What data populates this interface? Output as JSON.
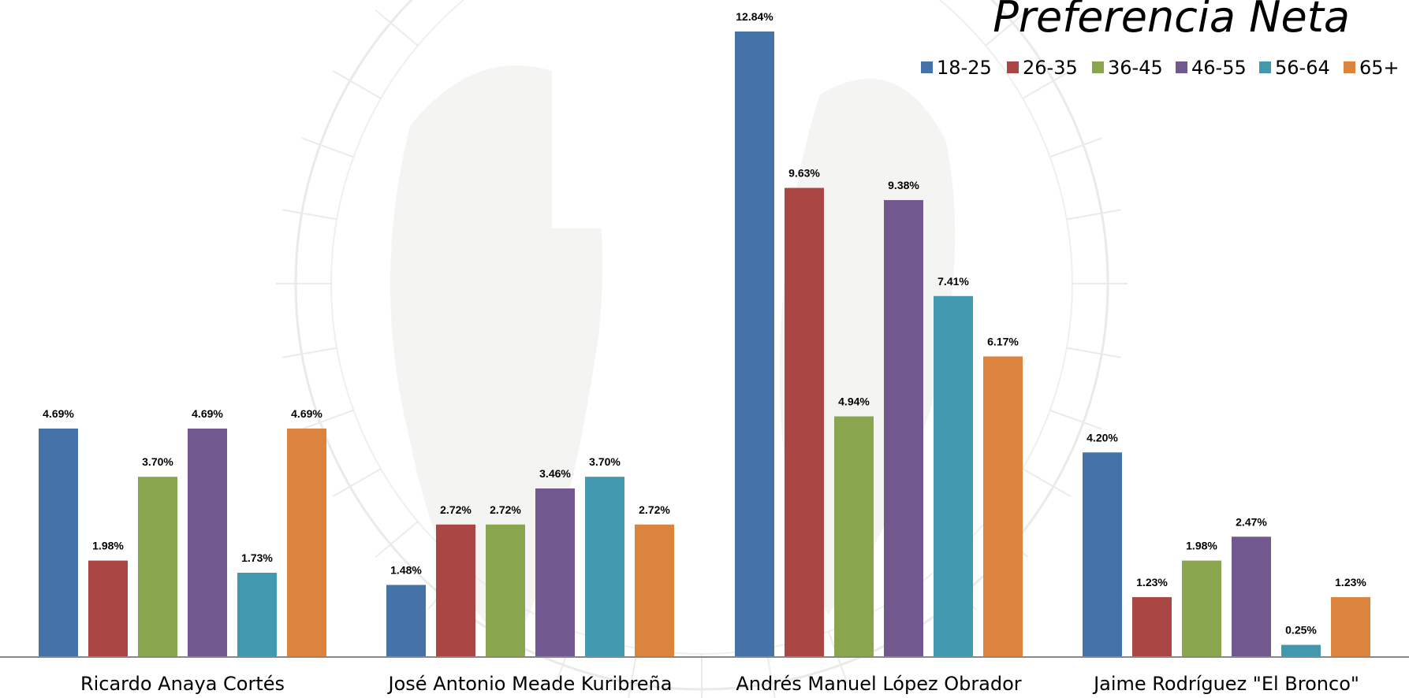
{
  "chart_data": {
    "type": "bar",
    "title": "Preferencia Neta",
    "xlabel": "",
    "ylabel": "",
    "ylim": [
      0,
      13.5
    ],
    "grid": false,
    "legend_position": "top-right",
    "categories": [
      "Ricardo Anaya Cortés",
      "José Antonio Meade Kuribreña",
      "Andrés Manuel López Obrador",
      "Jaime Rodríguez \"El Bronco\""
    ],
    "series": [
      {
        "name": "18-25",
        "color": "#4572A7",
        "values": [
          4.69,
          1.48,
          12.84,
          4.2
        ],
        "labels": [
          "4.69%",
          "1.48%",
          "12.84%",
          "4.20%"
        ]
      },
      {
        "name": "26-35",
        "color": "#AA4643",
        "values": [
          1.98,
          2.72,
          9.63,
          1.23
        ],
        "labels": [
          "1.98%",
          "2.72%",
          "9.63%",
          "1.23%"
        ]
      },
      {
        "name": "36-45",
        "color": "#89A54E",
        "values": [
          3.7,
          2.72,
          4.94,
          1.98
        ],
        "labels": [
          "3.70%",
          "2.72%",
          "4.94%",
          "1.98%"
        ]
      },
      {
        "name": "46-55",
        "color": "#71588F",
        "values": [
          4.69,
          3.46,
          9.38,
          2.47
        ],
        "labels": [
          "4.69%",
          "3.46%",
          "9.38%",
          "2.47%"
        ]
      },
      {
        "name": "56-64",
        "color": "#4198AF",
        "values": [
          1.73,
          3.7,
          7.41,
          0.25
        ],
        "labels": [
          "1.73%",
          "3.70%",
          "7.41%",
          "0.25%"
        ]
      },
      {
        "name": "65+",
        "color": "#DB843D",
        "values": [
          4.69,
          2.72,
          6.17,
          1.23
        ],
        "labels": [
          "4.69%",
          "2.72%",
          "6.17%",
          "1.23%"
        ]
      }
    ]
  }
}
